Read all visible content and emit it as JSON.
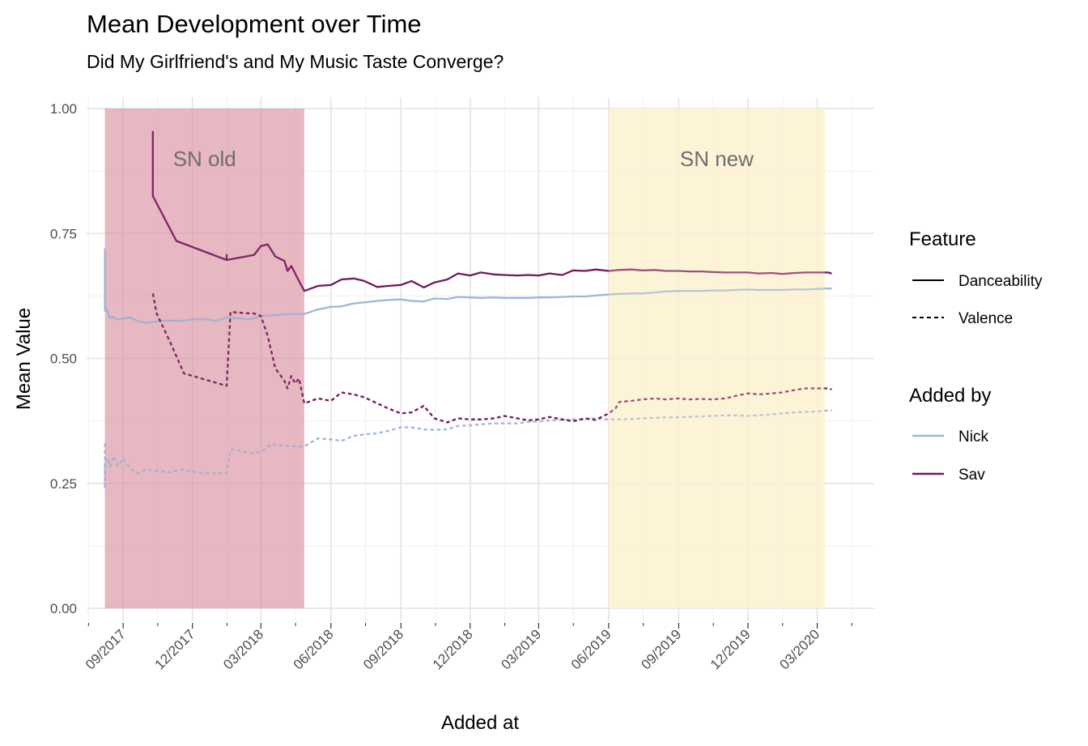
{
  "chart_data": {
    "type": "line",
    "title": "Mean Development over Time",
    "subtitle": "Did My Girlfriend's and My Music Taste Converge?",
    "xlabel": "Added at",
    "ylabel": "Mean Value",
    "ylim": [
      0,
      1
    ],
    "y_ticks": [
      "0.00",
      "0.25",
      "0.50",
      "0.75",
      "1.00"
    ],
    "xlim": [
      "2017-07-15",
      "2020-05-15"
    ],
    "x_tick_labels": [
      "09/2017",
      "12/2017",
      "03/2018",
      "06/2018",
      "09/2018",
      "12/2018",
      "03/2019",
      "06/2019",
      "09/2019",
      "12/2019",
      "03/2020"
    ],
    "x_ticks": [
      "2017-09-01",
      "2017-12-01",
      "2018-03-01",
      "2018-06-01",
      "2018-09-01",
      "2018-12-01",
      "2019-03-01",
      "2019-06-01",
      "2019-09-01",
      "2019-12-01",
      "2020-03-01"
    ],
    "grid": true,
    "legend_placement": "right",
    "regions": [
      {
        "label": "SN old",
        "start": "2017-08-08",
        "end": "2018-04-27",
        "color": "#d9899a"
      },
      {
        "label": "SN new",
        "start": "2019-06-01",
        "end": "2020-03-11",
        "color": "#fdf1cf"
      }
    ],
    "legends": {
      "feature": {
        "title": "Feature",
        "entries": [
          "Danceability",
          "Valence"
        ]
      },
      "added_by": {
        "title": "Added by",
        "entries": [
          "Nick",
          "Sav"
        ]
      }
    },
    "colors": {
      "Nick": "#9fb6d6",
      "Sav": "#72195e"
    },
    "series": [
      {
        "added_by": "Nick",
        "feature": "Danceability",
        "x": [
          "2017-08-08",
          "2017-08-08",
          "2017-08-08",
          "2017-08-10",
          "2017-08-15",
          "2017-08-18",
          "2017-08-25",
          "2017-09-01",
          "2017-09-10",
          "2017-09-20",
          "2017-10-01",
          "2017-10-10",
          "2017-10-20",
          "2017-11-01",
          "2017-11-15",
          "2017-12-01",
          "2017-12-15",
          "2018-01-01",
          "2018-01-15",
          "2018-02-01",
          "2018-02-15",
          "2018-03-01",
          "2018-03-15",
          "2018-04-01",
          "2018-04-15",
          "2018-04-27",
          "2018-05-15",
          "2018-06-01",
          "2018-06-15",
          "2018-07-01",
          "2018-07-15",
          "2018-08-01",
          "2018-08-15",
          "2018-09-01",
          "2018-09-15",
          "2018-10-01",
          "2018-10-15",
          "2018-11-01",
          "2018-11-15",
          "2018-12-01",
          "2018-12-15",
          "2019-01-01",
          "2019-01-15",
          "2019-02-01",
          "2019-02-15",
          "2019-03-01",
          "2019-03-15",
          "2019-04-01",
          "2019-04-15",
          "2019-05-01",
          "2019-05-15",
          "2019-06-01",
          "2019-06-15",
          "2019-07-01",
          "2019-07-15",
          "2019-08-01",
          "2019-08-15",
          "2019-09-01",
          "2019-09-15",
          "2019-10-01",
          "2019-10-15",
          "2019-11-01",
          "2019-11-15",
          "2019-12-01",
          "2019-12-15",
          "2020-01-01",
          "2020-01-15",
          "2020-02-01",
          "2020-02-15",
          "2020-03-01",
          "2020-03-15",
          "2020-03-20"
        ],
        "y": [
          0.72,
          0.595,
          0.605,
          0.6,
          0.58,
          0.583,
          0.578,
          0.58,
          0.582,
          0.575,
          0.571,
          0.573,
          0.575,
          0.576,
          0.575,
          0.578,
          0.579,
          0.575,
          0.582,
          0.58,
          0.578,
          0.585,
          0.586,
          0.588,
          0.589,
          0.589,
          0.598,
          0.603,
          0.604,
          0.61,
          0.612,
          0.615,
          0.617,
          0.618,
          0.615,
          0.614,
          0.62,
          0.619,
          0.623,
          0.622,
          0.621,
          0.622,
          0.621,
          0.621,
          0.621,
          0.622,
          0.622,
          0.623,
          0.624,
          0.624,
          0.626,
          0.628,
          0.629,
          0.63,
          0.63,
          0.632,
          0.634,
          0.635,
          0.635,
          0.635,
          0.636,
          0.636,
          0.637,
          0.638,
          0.637,
          0.637,
          0.637,
          0.638,
          0.638,
          0.639,
          0.64,
          0.64
        ]
      },
      {
        "added_by": "Nick",
        "feature": "Valence",
        "x": [
          "2017-08-08",
          "2017-08-08",
          "2017-08-08",
          "2017-08-12",
          "2017-08-15",
          "2017-08-20",
          "2017-08-25",
          "2017-09-01",
          "2017-09-10",
          "2017-09-20",
          "2017-10-01",
          "2017-10-15",
          "2017-11-01",
          "2017-11-15",
          "2017-12-01",
          "2017-12-15",
          "2018-01-01",
          "2018-01-15",
          "2018-01-20",
          "2018-02-01",
          "2018-02-15",
          "2018-03-01",
          "2018-03-15",
          "2018-04-01",
          "2018-04-15",
          "2018-04-27",
          "2018-05-15",
          "2018-06-01",
          "2018-06-15",
          "2018-07-01",
          "2018-07-15",
          "2018-08-01",
          "2018-08-15",
          "2018-09-01",
          "2018-09-15",
          "2018-10-01",
          "2018-10-15",
          "2018-11-01",
          "2018-11-15",
          "2018-12-01",
          "2018-12-15",
          "2019-01-01",
          "2019-01-15",
          "2019-02-01",
          "2019-02-15",
          "2019-03-01",
          "2019-03-15",
          "2019-04-01",
          "2019-04-15",
          "2019-05-01",
          "2019-05-15",
          "2019-06-01",
          "2019-06-15",
          "2019-07-01",
          "2019-07-15",
          "2019-08-01",
          "2019-08-15",
          "2019-09-01",
          "2019-09-15",
          "2019-10-01",
          "2019-10-15",
          "2019-11-01",
          "2019-11-15",
          "2019-12-01",
          "2019-12-15",
          "2020-01-01",
          "2020-01-15",
          "2020-02-01",
          "2020-02-15",
          "2020-03-01",
          "2020-03-15",
          "2020-03-20"
        ],
        "y": [
          0.33,
          0.24,
          0.29,
          0.3,
          0.283,
          0.305,
          0.285,
          0.3,
          0.28,
          0.27,
          0.278,
          0.275,
          0.272,
          0.278,
          0.274,
          0.27,
          0.27,
          0.27,
          0.318,
          0.316,
          0.31,
          0.313,
          0.328,
          0.325,
          0.324,
          0.324,
          0.34,
          0.338,
          0.335,
          0.345,
          0.348,
          0.35,
          0.355,
          0.362,
          0.362,
          0.358,
          0.357,
          0.358,
          0.365,
          0.366,
          0.368,
          0.37,
          0.37,
          0.37,
          0.373,
          0.374,
          0.376,
          0.377,
          0.378,
          0.379,
          0.38,
          0.378,
          0.378,
          0.379,
          0.38,
          0.381,
          0.382,
          0.382,
          0.383,
          0.384,
          0.385,
          0.386,
          0.386,
          0.385,
          0.386,
          0.388,
          0.39,
          0.392,
          0.393,
          0.394,
          0.396,
          0.396
        ]
      },
      {
        "added_by": "Sav",
        "feature": "Danceability",
        "x": [
          "2017-10-10",
          "2017-10-10",
          "2017-11-10",
          "2018-01-15",
          "2018-01-15",
          "2018-01-15",
          "2018-02-20",
          "2018-03-01",
          "2018-03-10",
          "2018-03-20",
          "2018-04-01",
          "2018-04-05",
          "2018-04-10",
          "2018-04-15",
          "2018-04-20",
          "2018-04-27",
          "2018-05-15",
          "2018-06-01",
          "2018-06-15",
          "2018-07-01",
          "2018-07-15",
          "2018-08-01",
          "2018-08-15",
          "2018-09-01",
          "2018-09-15",
          "2018-10-01",
          "2018-10-15",
          "2018-11-01",
          "2018-11-15",
          "2018-12-01",
          "2018-12-15",
          "2019-01-01",
          "2019-01-15",
          "2019-02-01",
          "2019-02-15",
          "2019-03-01",
          "2019-03-15",
          "2019-04-01",
          "2019-04-15",
          "2019-05-01",
          "2019-05-15",
          "2019-06-01",
          "2019-06-15",
          "2019-07-01",
          "2019-07-15",
          "2019-08-01",
          "2019-08-15",
          "2019-09-01",
          "2019-09-15",
          "2019-10-01",
          "2019-10-15",
          "2019-11-01",
          "2019-11-15",
          "2019-12-01",
          "2019-12-15",
          "2020-01-01",
          "2020-01-15",
          "2020-02-01",
          "2020-02-15",
          "2020-03-01",
          "2020-03-15",
          "2020-03-20"
        ],
        "y": [
          0.955,
          0.825,
          0.735,
          0.697,
          0.707,
          0.697,
          0.707,
          0.725,
          0.728,
          0.704,
          0.695,
          0.675,
          0.685,
          0.67,
          0.655,
          0.635,
          0.645,
          0.647,
          0.658,
          0.66,
          0.655,
          0.643,
          0.645,
          0.647,
          0.655,
          0.642,
          0.652,
          0.658,
          0.67,
          0.666,
          0.672,
          0.668,
          0.667,
          0.666,
          0.667,
          0.666,
          0.67,
          0.667,
          0.676,
          0.675,
          0.678,
          0.675,
          0.677,
          0.678,
          0.676,
          0.677,
          0.675,
          0.675,
          0.674,
          0.674,
          0.673,
          0.672,
          0.672,
          0.672,
          0.67,
          0.671,
          0.669,
          0.671,
          0.672,
          0.672,
          0.672,
          0.67
        ]
      },
      {
        "added_by": "Sav",
        "feature": "Valence",
        "x": [
          "2017-10-10",
          "2017-10-15",
          "2017-11-01",
          "2017-11-20",
          "2018-01-15",
          "2018-01-20",
          "2018-02-15",
          "2018-02-20",
          "2018-03-01",
          "2018-03-10",
          "2018-03-20",
          "2018-04-01",
          "2018-04-05",
          "2018-04-10",
          "2018-04-15",
          "2018-04-20",
          "2018-04-27",
          "2018-05-15",
          "2018-06-01",
          "2018-06-15",
          "2018-07-01",
          "2018-07-15",
          "2018-08-01",
          "2018-08-15",
          "2018-09-01",
          "2018-09-15",
          "2018-10-01",
          "2018-10-15",
          "2018-11-01",
          "2018-11-15",
          "2018-12-01",
          "2018-12-15",
          "2019-01-01",
          "2019-01-15",
          "2019-02-01",
          "2019-02-15",
          "2019-03-01",
          "2019-03-15",
          "2019-04-01",
          "2019-04-15",
          "2019-05-01",
          "2019-05-15",
          "2019-06-01",
          "2019-06-10",
          "2019-06-15",
          "2019-07-01",
          "2019-07-15",
          "2019-08-01",
          "2019-08-15",
          "2019-09-01",
          "2019-09-15",
          "2019-10-01",
          "2019-10-15",
          "2019-11-01",
          "2019-11-15",
          "2019-12-01",
          "2019-12-15",
          "2020-01-01",
          "2020-01-15",
          "2020-02-01",
          "2020-02-15",
          "2020-03-01",
          "2020-03-15",
          "2020-03-20"
        ],
        "y": [
          0.63,
          0.59,
          0.535,
          0.47,
          0.445,
          0.593,
          0.59,
          0.59,
          0.585,
          0.545,
          0.48,
          0.455,
          0.44,
          0.465,
          0.45,
          0.46,
          0.41,
          0.42,
          0.415,
          0.432,
          0.428,
          0.422,
          0.41,
          0.4,
          0.39,
          0.392,
          0.405,
          0.38,
          0.372,
          0.38,
          0.378,
          0.378,
          0.38,
          0.385,
          0.38,
          0.376,
          0.378,
          0.383,
          0.378,
          0.374,
          0.38,
          0.377,
          0.39,
          0.4,
          0.413,
          0.415,
          0.418,
          0.42,
          0.418,
          0.42,
          0.418,
          0.419,
          0.418,
          0.42,
          0.425,
          0.43,
          0.428,
          0.43,
          0.432,
          0.437,
          0.44,
          0.44,
          0.44,
          0.438
        ]
      }
    ]
  }
}
